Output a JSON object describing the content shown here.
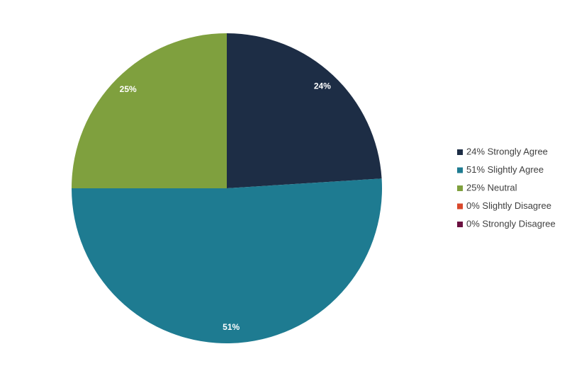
{
  "chart_data": {
    "type": "pie",
    "categories": [
      "24% Strongly Agree",
      "51% Slightly Agree",
      "25% Neutral",
      "0% Slightly Disagree",
      "0% Strongly Disagree"
    ],
    "values": [
      24,
      51,
      25,
      0,
      0
    ],
    "value_labels": [
      "24%",
      "51%",
      "25%",
      null,
      null
    ],
    "colors": [
      "#1d2d45",
      "#1e7b91",
      "#7fa03e",
      "#d9482b",
      "#6b1040"
    ],
    "legend": "right"
  }
}
